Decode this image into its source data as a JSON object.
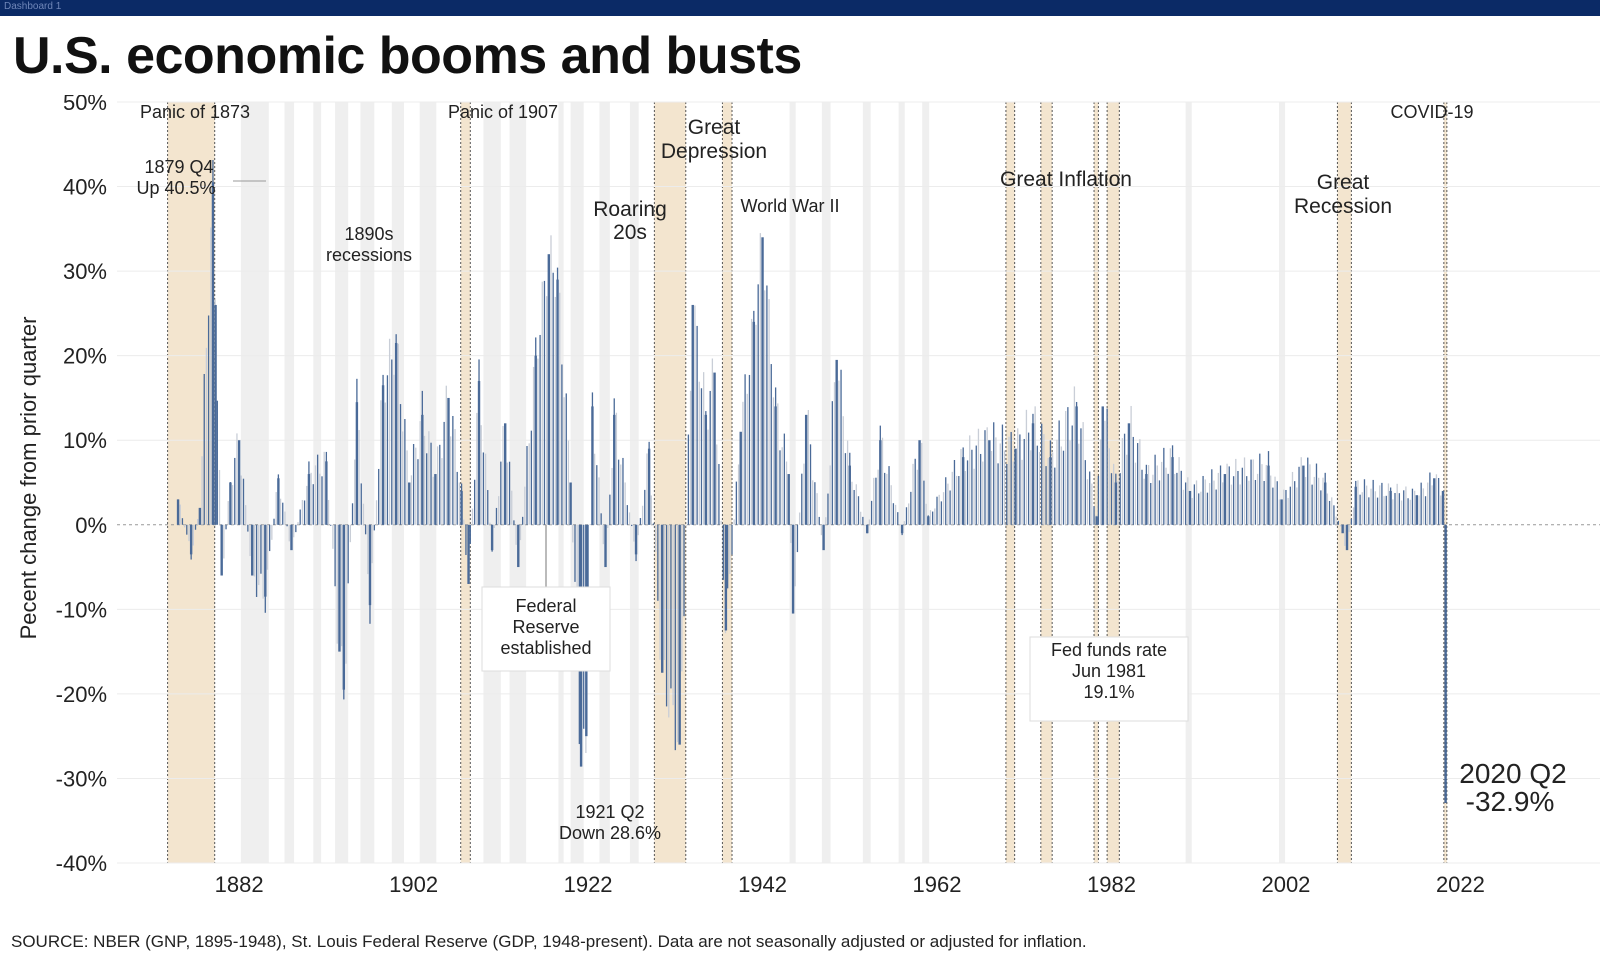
{
  "window": {
    "tab_label": "Dashboard 1"
  },
  "header": {
    "title": "U.S. economic booms and busts"
  },
  "footer": {
    "source": "SOURCE: NBER (GNP, 1895-1948), St. Louis Federal Reserve (GDP, 1948-present). Data are not seasonally adjusted or adjusted for inflation."
  },
  "colors": {
    "bar": "#4a6a98",
    "bar_light": "#c9ced7",
    "major_band": "#f3e5cf",
    "recession_band": "#efefef",
    "gridline": "#ececec"
  },
  "chart_data": {
    "type": "bar",
    "ylabel": "Pecent change from prior quarter",
    "xlabel": "",
    "ylim": [
      -40,
      50
    ],
    "xlim": [
      1868,
      2038
    ],
    "x_ticks": [
      1882,
      1902,
      1922,
      1942,
      1962,
      1982,
      2002,
      2022
    ],
    "y_ticks": [
      "-40%",
      "-30%",
      "-20%",
      "-10%",
      "0%",
      "10%",
      "20%",
      "30%",
      "40%",
      "50%"
    ],
    "y_tick_values": [
      -40,
      -30,
      -20,
      -10,
      0,
      10,
      20,
      30,
      40,
      50
    ],
    "major_episodes": [
      {
        "label": "Panic of 1873",
        "start": 1873.8,
        "end": 1879.2
      },
      {
        "label": "Panic of 1907",
        "start": 1907.4,
        "end": 1908.5
      },
      {
        "label": "Great Depression",
        "start": 1929.6,
        "end": 1933.2
      },
      {
        "label": "World War II",
        "start": 1937.4,
        "end": 1938.5
      },
      {
        "label": "Great Inflation (1970)",
        "start": 1969.9,
        "end": 1970.9
      },
      {
        "label": "Great Inflation (1974)",
        "start": 1973.9,
        "end": 1975.2
      },
      {
        "label": "Great Inflation (1980)",
        "start": 1980.0,
        "end": 1980.5
      },
      {
        "label": "Great Inflation (1981)",
        "start": 1981.5,
        "end": 1982.9
      },
      {
        "label": "Great Recession",
        "start": 2007.9,
        "end": 2009.5
      },
      {
        "label": "COVID-19",
        "start": 2020.1,
        "end": 2020.4
      }
    ],
    "other_recessions": [
      [
        1882.2,
        1885.4
      ],
      [
        1887.2,
        1888.3
      ],
      [
        1890.5,
        1891.4
      ],
      [
        1893.0,
        1894.5
      ],
      [
        1895.9,
        1897.5
      ],
      [
        1899.5,
        1900.9
      ],
      [
        1902.7,
        1904.6
      ],
      [
        1910.0,
        1912.0
      ],
      [
        1913.0,
        1914.9
      ],
      [
        1918.6,
        1919.2
      ],
      [
        1920.0,
        1921.5
      ],
      [
        1923.3,
        1924.5
      ],
      [
        1926.8,
        1927.8
      ],
      [
        1945.1,
        1945.8
      ],
      [
        1948.8,
        1949.8
      ],
      [
        1953.5,
        1954.4
      ],
      [
        1957.6,
        1958.3
      ],
      [
        1960.3,
        1961.1
      ],
      [
        1990.5,
        1991.2
      ],
      [
        2001.2,
        2001.9
      ]
    ],
    "series_anchor_points": [
      {
        "x": 1875.0,
        "y": 3.0
      },
      {
        "x": 1876.5,
        "y": -3.5
      },
      {
        "x": 1877.5,
        "y": 2.0
      },
      {
        "x": 1879.0,
        "y": 40.5
      },
      {
        "x": 1879.3,
        "y": 26.0
      },
      {
        "x": 1880.0,
        "y": -6.0
      },
      {
        "x": 1881.0,
        "y": 5.0
      },
      {
        "x": 1882.0,
        "y": 10.0
      },
      {
        "x": 1883.5,
        "y": -6.0
      },
      {
        "x": 1885.0,
        "y": -8.5
      },
      {
        "x": 1886.5,
        "y": 5.5
      },
      {
        "x": 1888.0,
        "y": -3.0
      },
      {
        "x": 1890.0,
        "y": 6.0
      },
      {
        "x": 1892.0,
        "y": 7.5
      },
      {
        "x": 1893.5,
        "y": -15.0
      },
      {
        "x": 1894.0,
        "y": -19.5
      },
      {
        "x": 1895.5,
        "y": 14.5
      },
      {
        "x": 1897.0,
        "y": -9.5
      },
      {
        "x": 1898.5,
        "y": 16.5
      },
      {
        "x": 1900.0,
        "y": 21.5
      },
      {
        "x": 1901.5,
        "y": 5.0
      },
      {
        "x": 1903.0,
        "y": 13.0
      },
      {
        "x": 1904.5,
        "y": 6.0
      },
      {
        "x": 1906.0,
        "y": 15.0
      },
      {
        "x": 1907.5,
        "y": 4.0
      },
      {
        "x": 1908.3,
        "y": -7.0
      },
      {
        "x": 1909.5,
        "y": 17.0
      },
      {
        "x": 1911.0,
        "y": -3.0
      },
      {
        "x": 1912.5,
        "y": 12.0
      },
      {
        "x": 1914.0,
        "y": -5.0
      },
      {
        "x": 1916.0,
        "y": 20.0
      },
      {
        "x": 1917.5,
        "y": 32.0
      },
      {
        "x": 1918.5,
        "y": 29.0
      },
      {
        "x": 1920.0,
        "y": 5.0
      },
      {
        "x": 1921.2,
        "y": -28.6
      },
      {
        "x": 1921.8,
        "y": -25.0
      },
      {
        "x": 1922.5,
        "y": 14.0
      },
      {
        "x": 1924.0,
        "y": -5.0
      },
      {
        "x": 1925.0,
        "y": 13.0
      },
      {
        "x": 1927.5,
        "y": -3.5
      },
      {
        "x": 1929.0,
        "y": 9.0
      },
      {
        "x": 1930.5,
        "y": -17.5
      },
      {
        "x": 1932.5,
        "y": -26.0
      },
      {
        "x": 1934.0,
        "y": 26.0
      },
      {
        "x": 1935.5,
        "y": 13.0
      },
      {
        "x": 1936.5,
        "y": 18.0
      },
      {
        "x": 1937.8,
        "y": -12.5
      },
      {
        "x": 1939.5,
        "y": 11.0
      },
      {
        "x": 1941.0,
        "y": 24.0
      },
      {
        "x": 1942.0,
        "y": 34.0
      },
      {
        "x": 1943.5,
        "y": 14.0
      },
      {
        "x": 1945.0,
        "y": 6.0
      },
      {
        "x": 1945.5,
        "y": -10.5
      },
      {
        "x": 1947.0,
        "y": 13.0
      },
      {
        "x": 1949.0,
        "y": -3.0
      },
      {
        "x": 1950.5,
        "y": 19.5
      },
      {
        "x": 1952.0,
        "y": 7.0
      },
      {
        "x": 1954.0,
        "y": -1.0
      },
      {
        "x": 1955.5,
        "y": 10.0
      },
      {
        "x": 1958.0,
        "y": -1.0
      },
      {
        "x": 1960.0,
        "y": 10.0
      },
      {
        "x": 1961.0,
        "y": 1.0
      },
      {
        "x": 1965.0,
        "y": 8.0
      },
      {
        "x": 1968.0,
        "y": 10.0
      },
      {
        "x": 1971.0,
        "y": 9.0
      },
      {
        "x": 1973.0,
        "y": 12.0
      },
      {
        "x": 1975.0,
        "y": 8.0
      },
      {
        "x": 1978.0,
        "y": 14.0
      },
      {
        "x": 1980.3,
        "y": 1.0
      },
      {
        "x": 1981.0,
        "y": 14.0
      },
      {
        "x": 1982.5,
        "y": 5.0
      },
      {
        "x": 1984.0,
        "y": 12.0
      },
      {
        "x": 1986.0,
        "y": 6.0
      },
      {
        "x": 1989.0,
        "y": 8.0
      },
      {
        "x": 1991.0,
        "y": 4.0
      },
      {
        "x": 1995.0,
        "y": 6.0
      },
      {
        "x": 2000.0,
        "y": 7.0
      },
      {
        "x": 2001.5,
        "y": 3.0
      },
      {
        "x": 2004.0,
        "y": 7.0
      },
      {
        "x": 2006.5,
        "y": 5.0
      },
      {
        "x": 2008.5,
        "y": -1.0
      },
      {
        "x": 2009.0,
        "y": -3.0
      },
      {
        "x": 2010.0,
        "y": 4.5
      },
      {
        "x": 2014.0,
        "y": 4.0
      },
      {
        "x": 2017.0,
        "y": 3.5
      },
      {
        "x": 2019.0,
        "y": 5.5
      },
      {
        "x": 2020.0,
        "y": 4.0
      },
      {
        "x": 2020.3,
        "y": -32.9
      }
    ],
    "annotations": {
      "panic_1873": "Panic of 1873",
      "peak_1879_line1": "1879 Q4",
      "peak_1879_line2": "Up 40.5%",
      "nineties_line1": "1890s",
      "nineties_line2": "recessions",
      "panic_1907": "Panic of 1907",
      "fed_line1": "Federal",
      "fed_line2": "Reserve",
      "fed_line3": "established",
      "roaring_line1": "Roaring",
      "roaring_line2": "20s",
      "q1921_line1": "1921 Q2",
      "q1921_line2": "Down 28.6%",
      "depression_line1": "Great",
      "depression_line2": "Depression",
      "wwii": "World War II",
      "inflation": "Great Inflation",
      "fedfunds_line1": "Fed funds rate",
      "fedfunds_line2": "Jun 1981",
      "fedfunds_line3": "19.1%",
      "recession_line1": "Great",
      "recession_line2": "Recession",
      "covid": "COVID-19",
      "covid_q_line1": "2020 Q2",
      "covid_q_line2": "-32.9%"
    }
  }
}
